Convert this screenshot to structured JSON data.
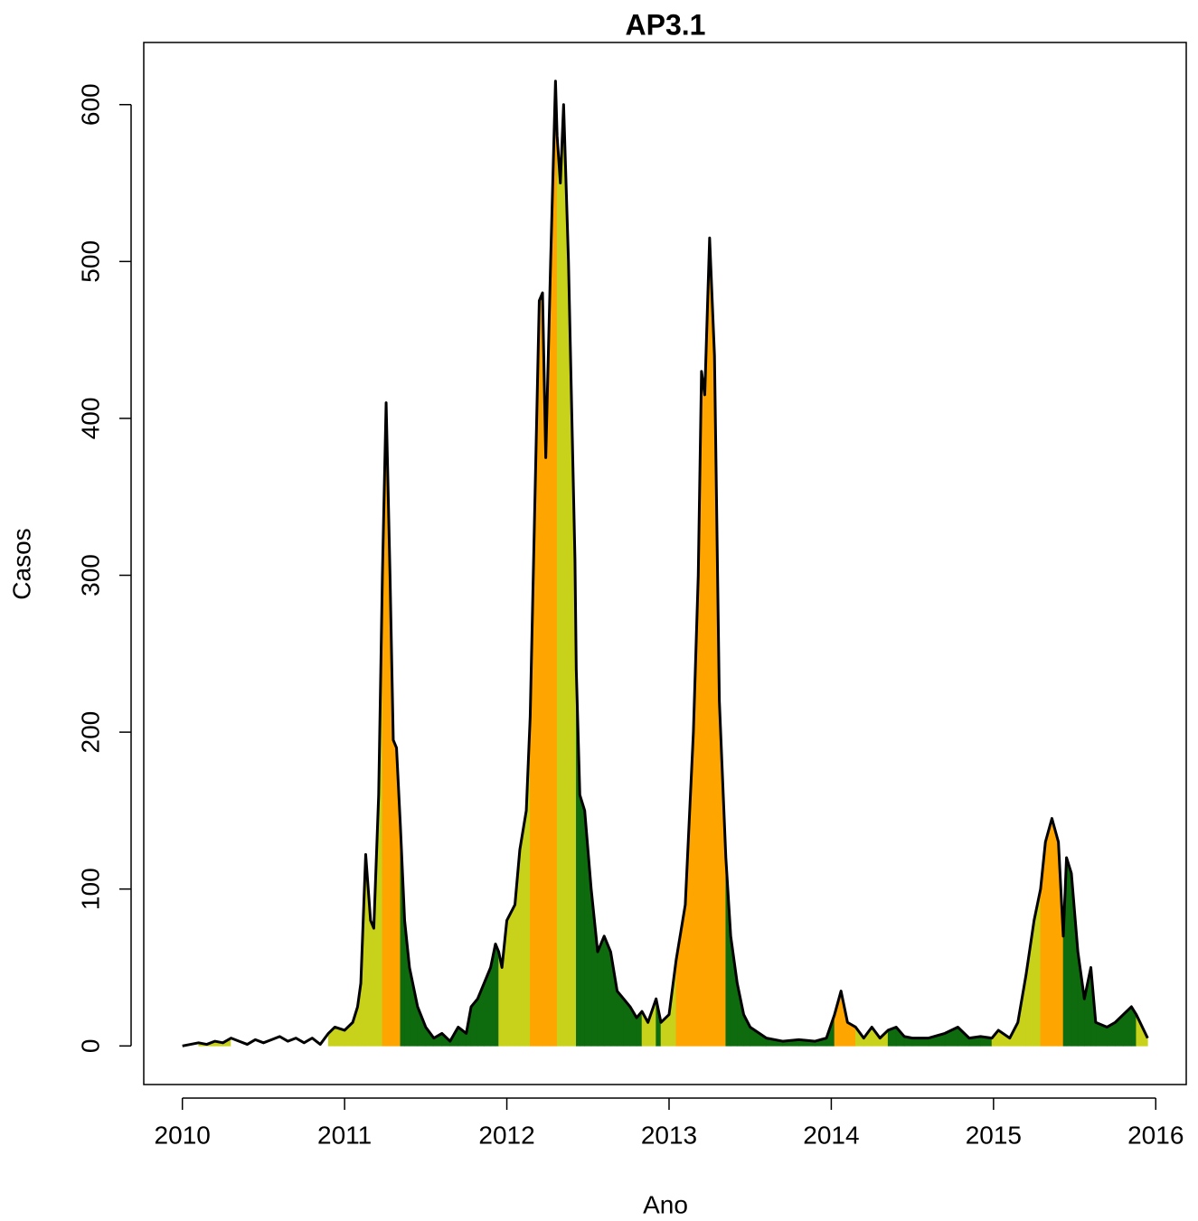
{
  "chart_data": {
    "type": "line",
    "title": "AP3.1",
    "x_label": "Ano",
    "y_label": "Casos",
    "xlim": [
      2009.762,
      2016.188
    ],
    "ylim": [
      -24.6,
      639.6
    ],
    "xticks": [
      2010,
      2011,
      2012,
      2013,
      2014,
      2015,
      2016
    ],
    "yticks": [
      0,
      100,
      200,
      300,
      400,
      500,
      600
    ],
    "line_color": "#000000",
    "level_colors": [
      "#ffffff",
      "#0e6b0e",
      "#c8d21a",
      "#ffa500"
    ],
    "x": [
      2010.0,
      2010.05,
      2010.1,
      2010.15,
      2010.2,
      2010.25,
      2010.3,
      2010.35,
      2010.4,
      2010.45,
      2010.5,
      2010.55,
      2010.6,
      2010.65,
      2010.7,
      2010.75,
      2010.8,
      2010.85,
      2010.9,
      2010.94,
      2011.0,
      2011.05,
      2011.08,
      2011.1,
      2011.13,
      2011.16,
      2011.18,
      2011.21,
      2011.233,
      2011.256,
      2011.28,
      2011.3,
      2011.32,
      2011.344,
      2011.37,
      2011.4,
      2011.45,
      2011.5,
      2011.55,
      2011.6,
      2011.65,
      2011.7,
      2011.75,
      2011.78,
      2011.82,
      2011.86,
      2011.9,
      2011.93,
      2011.95,
      2011.97,
      2012.0,
      2012.05,
      2012.08,
      2012.12,
      2012.144,
      2012.2,
      2012.22,
      2012.24,
      2012.27,
      2012.3,
      2012.31,
      2012.33,
      2012.35,
      2012.38,
      2012.42,
      2012.428,
      2012.45,
      2012.48,
      2012.52,
      2012.56,
      2012.6,
      2012.64,
      2012.68,
      2012.72,
      2012.76,
      2012.8,
      2012.833,
      2012.87,
      2012.92,
      2012.95,
      2013.0,
      2013.044,
      2013.1,
      2013.15,
      2013.18,
      2013.2,
      2013.22,
      2013.25,
      2013.28,
      2013.31,
      2013.35,
      2013.38,
      2013.42,
      2013.46,
      2013.5,
      2013.6,
      2013.7,
      2013.8,
      2013.9,
      2013.97,
      2014.02,
      2014.06,
      2014.1,
      2014.15,
      2014.2,
      2014.25,
      2014.3,
      2014.35,
      2014.4,
      2014.45,
      2014.5,
      2014.6,
      2014.7,
      2014.78,
      2014.85,
      2014.92,
      2014.99,
      2015.03,
      2015.1,
      2015.15,
      2015.2,
      2015.25,
      2015.29,
      2015.32,
      2015.36,
      2015.4,
      2015.43,
      2015.45,
      2015.48,
      2015.52,
      2015.56,
      2015.6,
      2015.63,
      2015.7,
      2015.75,
      2015.8,
      2015.85,
      2015.88,
      2015.95
    ],
    "values": [
      0,
      1,
      2,
      1,
      3,
      2,
      5,
      3,
      1,
      4,
      2,
      4,
      6,
      3,
      5,
      2,
      5,
      1,
      8,
      12,
      10,
      15,
      25,
      40,
      122,
      80,
      75,
      160,
      300,
      410,
      300,
      195,
      190,
      140,
      80,
      50,
      25,
      12,
      5,
      8,
      3,
      12,
      8,
      25,
      30,
      40,
      50,
      65,
      60,
      50,
      80,
      90,
      125,
      150,
      210,
      475,
      480,
      375,
      500,
      615,
      580,
      550,
      600,
      500,
      310,
      240,
      160,
      150,
      100,
      60,
      70,
      60,
      35,
      30,
      25,
      18,
      22,
      15,
      30,
      15,
      20,
      55,
      90,
      200,
      300,
      430,
      415,
      515,
      440,
      220,
      120,
      70,
      40,
      20,
      12,
      5,
      3,
      4,
      3,
      5,
      20,
      35,
      15,
      12,
      5,
      12,
      5,
      10,
      12,
      6,
      5,
      5,
      8,
      12,
      5,
      6,
      5,
      10,
      5,
      15,
      45,
      80,
      100,
      130,
      145,
      130,
      70,
      120,
      110,
      60,
      30,
      50,
      15,
      12,
      15,
      20,
      25,
      20,
      5
    ],
    "fill_levels": [
      0,
      0,
      2,
      2,
      2,
      2,
      0,
      0,
      0,
      0,
      0,
      0,
      0,
      0,
      0,
      0,
      0,
      0,
      2,
      2,
      2,
      2,
      2,
      2,
      2,
      2,
      2,
      2,
      3,
      3,
      3,
      3,
      3,
      1,
      1,
      1,
      1,
      1,
      1,
      1,
      1,
      1,
      1,
      1,
      1,
      1,
      1,
      1,
      2,
      2,
      2,
      2,
      2,
      2,
      3,
      3,
      3,
      3,
      3,
      3,
      2,
      2,
      2,
      2,
      2,
      1,
      1,
      1,
      1,
      1,
      1,
      1,
      1,
      1,
      1,
      1,
      2,
      2,
      1,
      2,
      2,
      3,
      3,
      3,
      3,
      3,
      3,
      3,
      3,
      3,
      1,
      1,
      1,
      1,
      1,
      1,
      1,
      1,
      1,
      1,
      3,
      3,
      3,
      2,
      2,
      2,
      2,
      1,
      1,
      1,
      1,
      1,
      1,
      1,
      1,
      1,
      2,
      2,
      2,
      2,
      2,
      2,
      3,
      3,
      3,
      3,
      1,
      1,
      1,
      1,
      1,
      1,
      1,
      1,
      1,
      1,
      1,
      2,
      2
    ]
  }
}
